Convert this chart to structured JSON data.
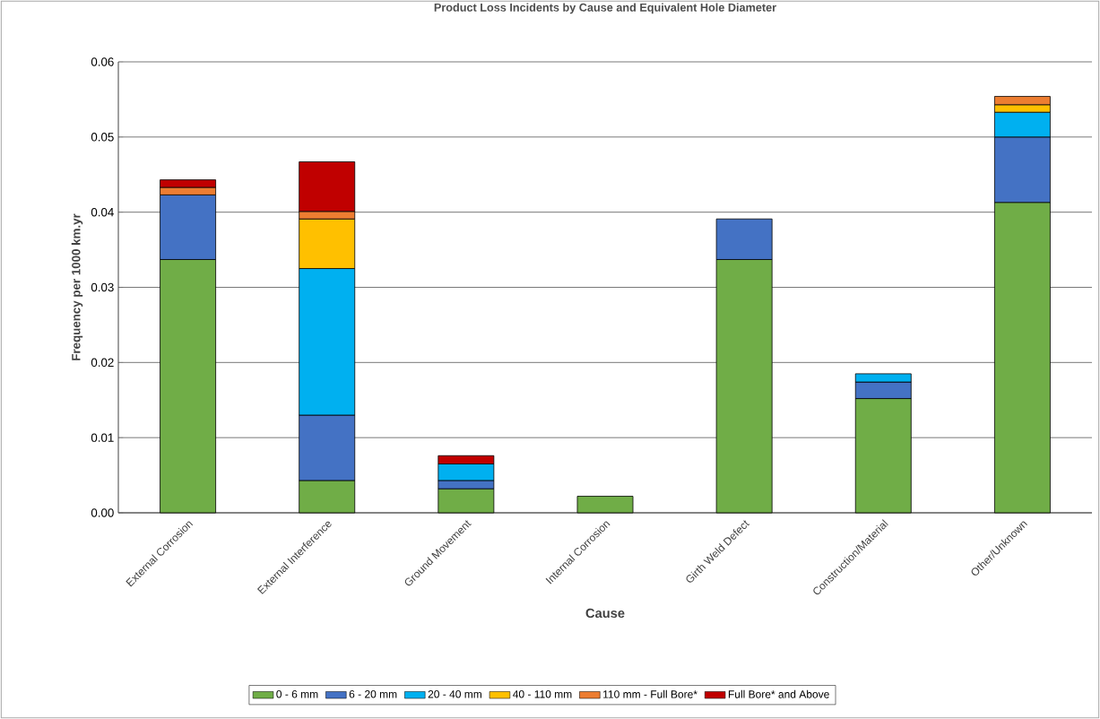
{
  "chart_data": {
    "type": "bar",
    "stacked": true,
    "title": "Product Loss Incidents by Cause and Equivalent Hole Diameter",
    "xlabel": "Cause",
    "ylabel": "Frequency per 1000 km.yr",
    "categories": [
      "External Corrosion",
      "External Interference",
      "Ground Movement",
      "Internal Corrosion",
      "Girth Weld Defect",
      "Construction/Material",
      "Other/Unknown"
    ],
    "series": [
      {
        "name": "0 - 6 mm",
        "color": "#70ad47",
        "values": [
          0.0337,
          0.0043,
          0.0032,
          0.0022,
          0.0337,
          0.0152,
          0.0413
        ]
      },
      {
        "name": "6 - 20 mm",
        "color": "#4472c4",
        "values": [
          0.0086,
          0.0087,
          0.0011,
          null,
          0.0054,
          0.0022,
          0.0087
        ]
      },
      {
        "name": "20 - 40 mm",
        "color": "#00b0f0",
        "values": [
          null,
          0.0195,
          0.0022,
          null,
          null,
          0.0011,
          0.0033
        ]
      },
      {
        "name": "40 - 110 mm",
        "color": "#ffc000",
        "values": [
          null,
          0.0066,
          null,
          null,
          null,
          null,
          0.001
        ]
      },
      {
        "name": "110 mm - Full Bore*",
        "color": "#ed7d31",
        "values": [
          0.001,
          0.001,
          null,
          null,
          null,
          null,
          0.0011
        ]
      },
      {
        "name": "Full Bore* and Above",
        "color": "#c00000",
        "values": [
          0.001,
          0.0066,
          0.0011,
          null,
          null,
          null,
          null
        ]
      }
    ],
    "ylim": [
      0,
      0.06
    ],
    "yticks": [
      {
        "value": 0,
        "label": "0.00"
      },
      0.01,
      0.02,
      0.03,
      0.04,
      0.05,
      0.06
    ],
    "grid": "y",
    "legend": "bottom"
  }
}
